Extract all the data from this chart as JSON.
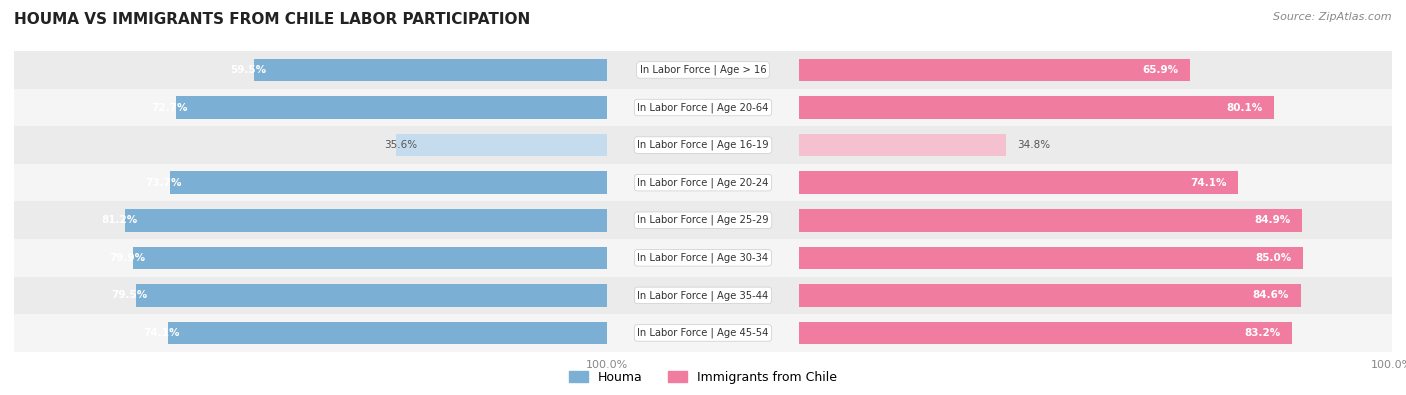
{
  "title": "HOUMA VS IMMIGRANTS FROM CHILE LABOR PARTICIPATION",
  "source": "Source: ZipAtlas.com",
  "categories": [
    "In Labor Force | Age > 16",
    "In Labor Force | Age 20-64",
    "In Labor Force | Age 16-19",
    "In Labor Force | Age 20-24",
    "In Labor Force | Age 25-29",
    "In Labor Force | Age 30-34",
    "In Labor Force | Age 35-44",
    "In Labor Force | Age 45-54"
  ],
  "houma_values": [
    59.5,
    72.7,
    35.6,
    73.7,
    81.2,
    79.9,
    79.5,
    74.1
  ],
  "chile_values": [
    65.9,
    80.1,
    34.8,
    74.1,
    84.9,
    85.0,
    84.6,
    83.2
  ],
  "houma_color": "#7bafd4",
  "houma_color_light": "#c5dcee",
  "chile_color": "#f07ca0",
  "chile_color_light": "#f5c0d0",
  "row_colors": [
    "#ebebeb",
    "#f5f5f5"
  ],
  "title_fontsize": 11,
  "bar_height": 0.6,
  "max_value": 100.0,
  "legend_labels": [
    "Houma",
    "Immigrants from Chile"
  ],
  "tick_label_color": "#888888",
  "label_fontsize": 7.5,
  "cat_fontsize": 7.2,
  "title_color": "#222222",
  "source_color": "#888888"
}
